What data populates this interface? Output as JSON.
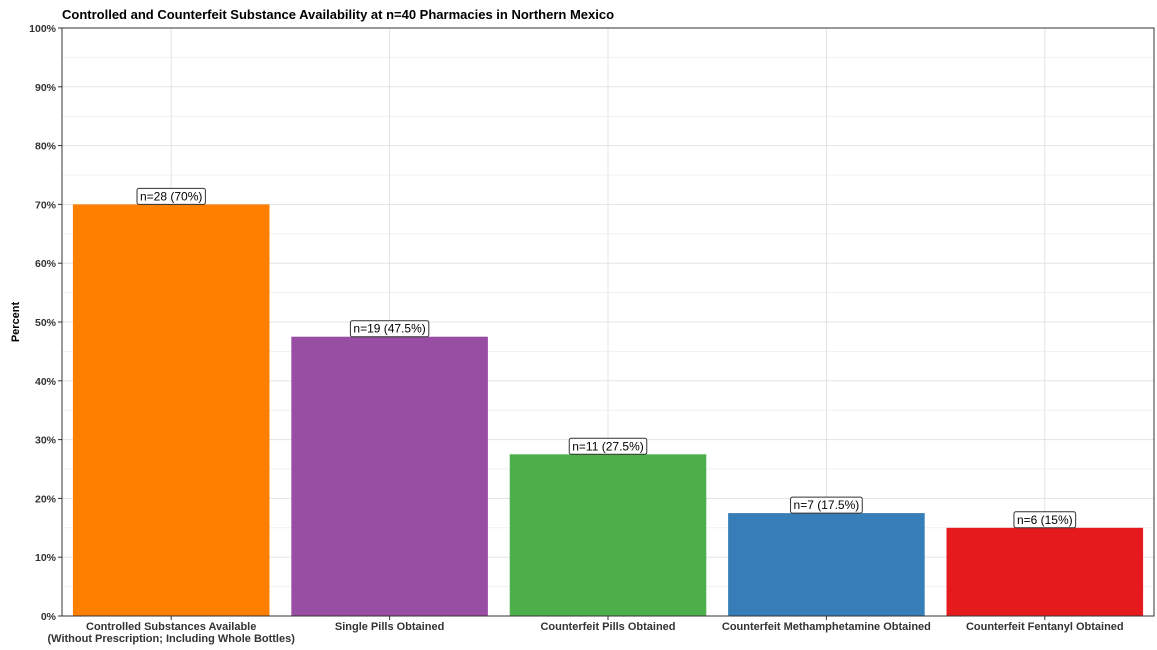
{
  "chart_data": {
    "type": "bar",
    "title": "Controlled and Counterfeit Substance Availability at n=40 Pharmacies in Northern Mexico",
    "xlabel": "",
    "ylabel": "Percent",
    "ylim": [
      0,
      100
    ],
    "y_ticks": [
      "0%",
      "10%",
      "20%",
      "30%",
      "40%",
      "50%",
      "60%",
      "70%",
      "80%",
      "90%",
      "100%"
    ],
    "categories": [
      [
        "Controlled Substances Available",
        "(Without Prescription; Including Whole Bottles)"
      ],
      [
        "Single Pills Obtained"
      ],
      [
        "Counterfeit Pills Obtained"
      ],
      [
        "Counterfeit Methamphetamine Obtained"
      ],
      [
        "Counterfeit Fentanyl Obtained"
      ]
    ],
    "values": [
      70,
      47.5,
      27.5,
      17.5,
      15
    ],
    "labels": [
      "n=28 (70%)",
      "n=19 (47.5%)",
      "n=11 (27.5%)",
      "n=7 (17.5%)",
      "n=6 (15%)"
    ],
    "colors": [
      "#FF7F00",
      "#984EA3",
      "#4DAF4A",
      "#377EB8",
      "#E41A1C"
    ],
    "grid": true,
    "legend": "none"
  }
}
